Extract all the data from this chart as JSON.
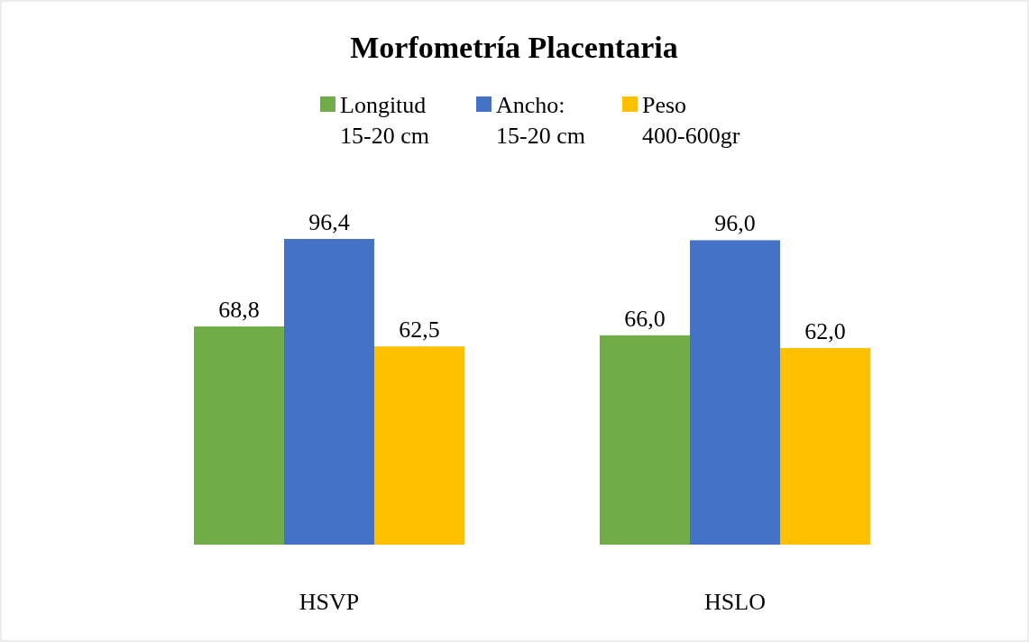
{
  "chart_data": {
    "type": "bar",
    "title": "Morfometría Placentaria",
    "categories": [
      "HSVP",
      "HSLO"
    ],
    "legend": "top",
    "series": [
      {
        "name": "Longitud 15-20 cm",
        "color": "#70ad47",
        "values": [
          68.8,
          66.0
        ],
        "value_labels": [
          "68,8",
          "66,0"
        ]
      },
      {
        "name": "Ancho: 15-20 cm",
        "color": "#4472c4",
        "values": [
          96.4,
          96.0
        ],
        "value_labels": [
          "96,4",
          "96,0"
        ]
      },
      {
        "name": "Peso 400-600gr",
        "color": "#ffc000",
        "values": [
          62.5,
          62.0
        ],
        "value_labels": [
          "62,5",
          "62,0"
        ]
      }
    ]
  }
}
